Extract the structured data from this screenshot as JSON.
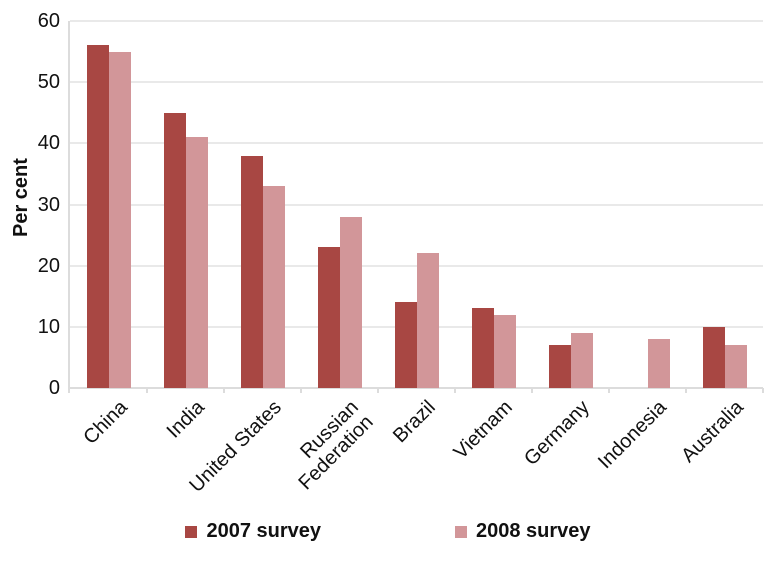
{
  "chart_data": {
    "type": "bar",
    "categories": [
      "China",
      "India",
      "United States",
      "Russian\nFederation",
      "Brazil",
      "Vietnam",
      "Germany",
      "Indonesia",
      "Australia"
    ],
    "series": [
      {
        "name": "2007 survey",
        "color": "#a84743",
        "values": [
          56,
          45,
          38,
          23,
          14,
          13,
          7,
          null,
          10
        ]
      },
      {
        "name": "2008 survey",
        "color": "#d29699",
        "values": [
          55,
          41,
          33,
          28,
          22,
          12,
          9,
          8,
          7
        ]
      }
    ],
    "title": "",
    "xlabel": "",
    "ylabel": "Per cent",
    "ylim": [
      0,
      60
    ],
    "yticks": [
      0,
      10,
      20,
      30,
      40,
      50,
      60
    ],
    "grid": true,
    "legend_position": "bottom-center"
  },
  "colors": {
    "gridline": "#e9e9e9",
    "axis": "#dcdcdc",
    "text": "#111111",
    "background": "#ffffff"
  }
}
